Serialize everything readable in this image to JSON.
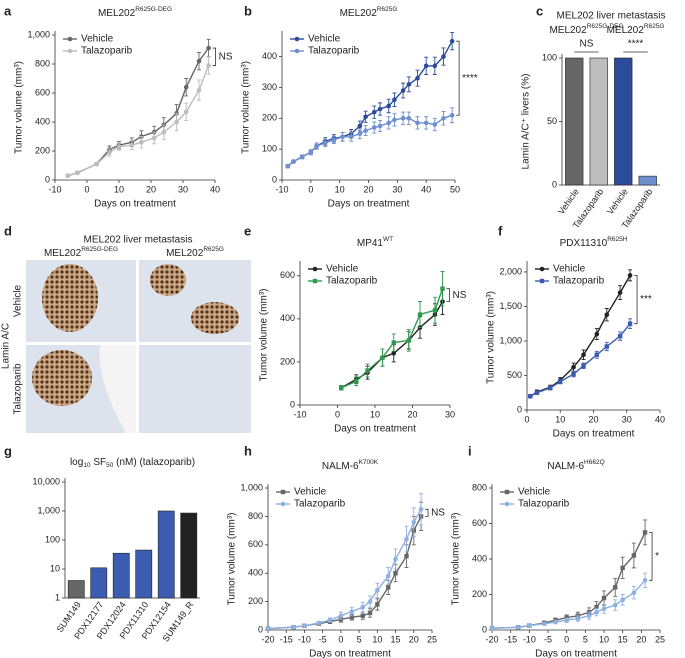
{
  "chart_data": [
    {
      "type": "line",
      "panel": "a",
      "title": "MEL202",
      "title_sup": "R625G-DEG",
      "xlabel": "Days on treatment",
      "ylabel": "Tumor volume (mm³)",
      "x": [
        -6,
        -3,
        3,
        7,
        10,
        14,
        17,
        21,
        24,
        28,
        31,
        35,
        38
      ],
      "series": [
        {
          "name": "Vehicle",
          "color": "#666666",
          "marker": "circle",
          "values": [
            30,
            50,
            110,
            210,
            240,
            260,
            300,
            330,
            380,
            460,
            640,
            820,
            910
          ],
          "errors": [
            5,
            8,
            10,
            25,
            25,
            30,
            40,
            40,
            50,
            60,
            60,
            60,
            60
          ]
        },
        {
          "name": "Talazoparib",
          "color": "#bdbdbd",
          "marker": "circle",
          "values": [
            30,
            50,
            110,
            190,
            230,
            240,
            260,
            290,
            330,
            400,
            470,
            620,
            790
          ],
          "errors": [
            5,
            8,
            10,
            25,
            25,
            30,
            40,
            40,
            50,
            60,
            60,
            70,
            60
          ]
        }
      ],
      "xlim": [
        -10,
        40
      ],
      "xticks": [
        -10,
        0,
        10,
        20,
        30,
        40
      ],
      "ylim": [
        0,
        1000
      ],
      "yticks": [
        0,
        200,
        400,
        600,
        800,
        {
          "value": 1000,
          "label": "1,000"
        }
      ],
      "legend": "upper left",
      "annotations": [
        "NS"
      ]
    },
    {
      "type": "line",
      "panel": "b",
      "title": "MEL202",
      "title_sup": "R625G",
      "xlabel": "Days on treatment",
      "ylabel": "Tumor volume (mm³)",
      "x": [
        -8,
        -6,
        -3,
        0,
        2,
        5,
        8,
        11,
        14,
        17,
        19,
        22,
        24,
        27,
        29,
        32,
        34,
        37,
        40,
        43,
        46,
        49
      ],
      "series": [
        {
          "name": "Vehicle",
          "color": "#2b4b9b",
          "marker": "circle",
          "values": [
            45,
            60,
            75,
            90,
            110,
            125,
            135,
            140,
            150,
            175,
            205,
            220,
            230,
            240,
            260,
            290,
            310,
            330,
            370,
            370,
            400,
            450
          ],
          "errors": [
            5,
            5,
            6,
            8,
            10,
            12,
            12,
            14,
            14,
            16,
            18,
            20,
            20,
            22,
            22,
            24,
            24,
            26,
            28,
            28,
            28,
            28
          ]
        },
        {
          "name": "Talazoparib",
          "color": "#6f8fd1",
          "marker": "circle",
          "values": [
            45,
            60,
            75,
            90,
            110,
            120,
            130,
            140,
            140,
            150,
            160,
            170,
            175,
            185,
            195,
            200,
            200,
            185,
            185,
            180,
            200,
            210
          ],
          "errors": [
            5,
            5,
            6,
            8,
            10,
            12,
            12,
            14,
            14,
            16,
            16,
            18,
            18,
            20,
            20,
            20,
            20,
            20,
            20,
            20,
            22,
            24
          ]
        }
      ],
      "xlim": [
        -10,
        50
      ],
      "xticks": [
        -10,
        0,
        10,
        20,
        30,
        40,
        50
      ],
      "ylim": [
        0,
        470
      ],
      "yticks": [
        0,
        100,
        200,
        300,
        400
      ],
      "legend": "upper left",
      "annotations": [
        "****"
      ]
    },
    {
      "type": "bar",
      "panel": "c",
      "title": "MEL202 liver metastasis",
      "ylabel": "Lamin A/C⁺ livers (%)",
      "categories": [
        "Vehicle",
        "Talazoparib",
        "Vehicle",
        "Talazoparib"
      ],
      "values": [
        100,
        100,
        100,
        7
      ],
      "colors": [
        "#666666",
        "#bdbdbd",
        "#2b4b9b",
        "#6f8fd1"
      ],
      "groups": [
        {
          "name": "MEL202",
          "sup": "R625G-DEG"
        },
        {
          "name": "MEL202",
          "sup": "R625G"
        }
      ],
      "ylim": [
        0,
        100
      ],
      "yticks": [
        0,
        50,
        100
      ],
      "annotations": [
        "NS",
        "****"
      ]
    },
    {
      "type": "line",
      "panel": "e",
      "title": "MP41",
      "title_sup": "WT",
      "xlabel": "Days on treatment",
      "ylabel": "Tumor volume (mm³)",
      "x": [
        1,
        5,
        8,
        12,
        15,
        19,
        22,
        26,
        28
      ],
      "series": [
        {
          "name": "Vehicle",
          "color": "#222222",
          "marker": "circle",
          "values": [
            80,
            120,
            150,
            220,
            240,
            300,
            360,
            420,
            480
          ],
          "errors": [
            10,
            20,
            30,
            40,
            40,
            40,
            50,
            50,
            60
          ]
        },
        {
          "name": "Talazoparib",
          "color": "#2e9a4e",
          "marker": "square",
          "values": [
            80,
            110,
            160,
            220,
            290,
            300,
            420,
            440,
            540
          ],
          "errors": [
            10,
            20,
            30,
            40,
            40,
            50,
            60,
            60,
            80
          ]
        }
      ],
      "xlim": [
        -10,
        30
      ],
      "xticks": [
        -10,
        0,
        10,
        20,
        30
      ],
      "ylim": [
        0,
        650
      ],
      "yticks": [
        0,
        200,
        400,
        600
      ],
      "legend": "upper left",
      "annotations": [
        "NS"
      ]
    },
    {
      "type": "line",
      "panel": "f",
      "title": "PDX11310",
      "title_sup": "R625H",
      "xlabel": "Days on treatment",
      "ylabel": "Tumor volume (mm³)",
      "x": [
        1,
        3,
        7,
        10,
        14,
        17,
        21,
        24,
        28,
        31
      ],
      "series": [
        {
          "name": "Vehicle",
          "color": "#222222",
          "marker": "circle",
          "values": [
            200,
            260,
            330,
            430,
            620,
            800,
            1100,
            1380,
            1700,
            1950
          ],
          "errors": [
            20,
            30,
            30,
            40,
            60,
            70,
            80,
            90,
            100,
            80
          ]
        },
        {
          "name": "Talazoparib",
          "color": "#3b5cb1",
          "marker": "square",
          "values": [
            200,
            250,
            320,
            410,
            520,
            640,
            800,
            920,
            1070,
            1250
          ],
          "errors": [
            20,
            20,
            30,
            30,
            40,
            40,
            50,
            60,
            60,
            70
          ]
        }
      ],
      "xlim": [
        0,
        40
      ],
      "xticks": [
        0,
        10,
        20,
        30,
        40
      ],
      "ylim": [
        0,
        2100
      ],
      "yticks": [
        0,
        500,
        {
          "value": 1000,
          "label": "1,000"
        },
        {
          "value": 1500,
          "label": "1,500"
        },
        {
          "value": 2000,
          "label": "2,000"
        }
      ],
      "legend": "upper left",
      "annotations": [
        "***"
      ]
    },
    {
      "type": "bar",
      "panel": "g",
      "title_parts": [
        {
          "text": "log"
        },
        {
          "text": "10",
          "sub": true
        },
        {
          "text": " SF"
        },
        {
          "text": "50",
          "sub": true
        },
        {
          "text": " (nM) (talazoparib)"
        }
      ],
      "categories": [
        "SUM149",
        "PDX12177",
        "PDX12024",
        "PDX11310",
        "PDX12154",
        "SUM149_R"
      ],
      "values": [
        4,
        11,
        35,
        45,
        1000,
        850
      ],
      "colors": [
        "#666666",
        "#3b5cb1",
        "#3b5cb1",
        "#3b5cb1",
        "#3b5cb1",
        "#222222"
      ],
      "log_scale": true,
      "ylim": [
        1,
        10000
      ],
      "yticks": [
        1,
        10,
        100,
        {
          "value": 1000,
          "label": "1,000"
        },
        {
          "value": 10000,
          "label": "10,000"
        }
      ]
    },
    {
      "type": "line",
      "panel": "h",
      "title": "NALM-6",
      "title_sup": "K700K",
      "xlabel": "Days on treatment",
      "ylabel": "Tumor volume (mm³)",
      "x": [
        -20,
        -13,
        -10,
        -6,
        -3,
        0,
        3,
        6,
        8,
        10,
        13,
        15,
        18,
        20,
        22
      ],
      "series": [
        {
          "name": "Vehicle",
          "color": "#666666",
          "marker": "square",
          "values": [
            10,
            20,
            30,
            45,
            60,
            75,
            90,
            100,
            120,
            180,
            300,
            400,
            520,
            700,
            800
          ],
          "errors": [
            5,
            5,
            8,
            10,
            15,
            20,
            20,
            25,
            30,
            40,
            50,
            60,
            80,
            100,
            100
          ]
        },
        {
          "name": "Talazoparib",
          "color": "#8fb0e2",
          "marker": "circle",
          "values": [
            10,
            20,
            30,
            50,
            70,
            100,
            130,
            160,
            200,
            280,
            380,
            500,
            640,
            760,
            850
          ],
          "errors": [
            5,
            5,
            8,
            10,
            15,
            25,
            30,
            35,
            40,
            50,
            60,
            70,
            90,
            100,
            110
          ]
        }
      ],
      "xlim": [
        -20,
        25
      ],
      "xticks": [
        -20,
        -15,
        -10,
        -5,
        0,
        5,
        10,
        15,
        20,
        25
      ],
      "ylim": [
        0,
        1000
      ],
      "yticks": [
        0,
        200,
        400,
        600,
        800,
        {
          "value": 1000,
          "label": "1,000"
        }
      ],
      "legend": "upper left",
      "annotations": [
        "NS"
      ]
    },
    {
      "type": "line",
      "panel": "i",
      "title": "NALM-6",
      "title_sup": "H662Q",
      "xlabel": "Days on treatment",
      "ylabel": "Tumor volume (mm³)",
      "x": [
        -20,
        -13,
        -10,
        -6,
        -3,
        0,
        3,
        6,
        8,
        10,
        13,
        15,
        18,
        21
      ],
      "series": [
        {
          "name": "Vehicle",
          "color": "#666666",
          "marker": "square",
          "values": [
            10,
            15,
            25,
            40,
            55,
            70,
            80,
            100,
            130,
            180,
            240,
            350,
            420,
            550
          ],
          "errors": [
            5,
            5,
            8,
            10,
            12,
            15,
            20,
            25,
            30,
            40,
            50,
            60,
            70,
            70
          ]
        },
        {
          "name": "Talazoparib",
          "color": "#8fb0e2",
          "marker": "circle",
          "values": [
            10,
            15,
            25,
            35,
            45,
            55,
            65,
            80,
            100,
            120,
            140,
            170,
            210,
            280
          ],
          "errors": [
            5,
            5,
            6,
            8,
            10,
            12,
            15,
            20,
            20,
            25,
            30,
            30,
            35,
            40
          ]
        }
      ],
      "xlim": [
        -20,
        25
      ],
      "xticks": [
        -20,
        -15,
        -10,
        -5,
        0,
        5,
        10,
        15,
        20,
        25
      ],
      "ylim": [
        0,
        800
      ],
      "yticks": [
        0,
        200,
        400,
        600,
        800
      ],
      "legend": "upper left",
      "annotations": [
        "*"
      ]
    }
  ],
  "figure_d": {
    "panel": "d",
    "title": "MEL202 liver metastasis",
    "columns": [
      {
        "name": "MEL202",
        "sup": "R625G-DEG"
      },
      {
        "name": "MEL202",
        "sup": "R625G"
      }
    ],
    "rows": [
      "Vehicle",
      "Talazoparib"
    ],
    "side_label": "Lamin A/C"
  }
}
